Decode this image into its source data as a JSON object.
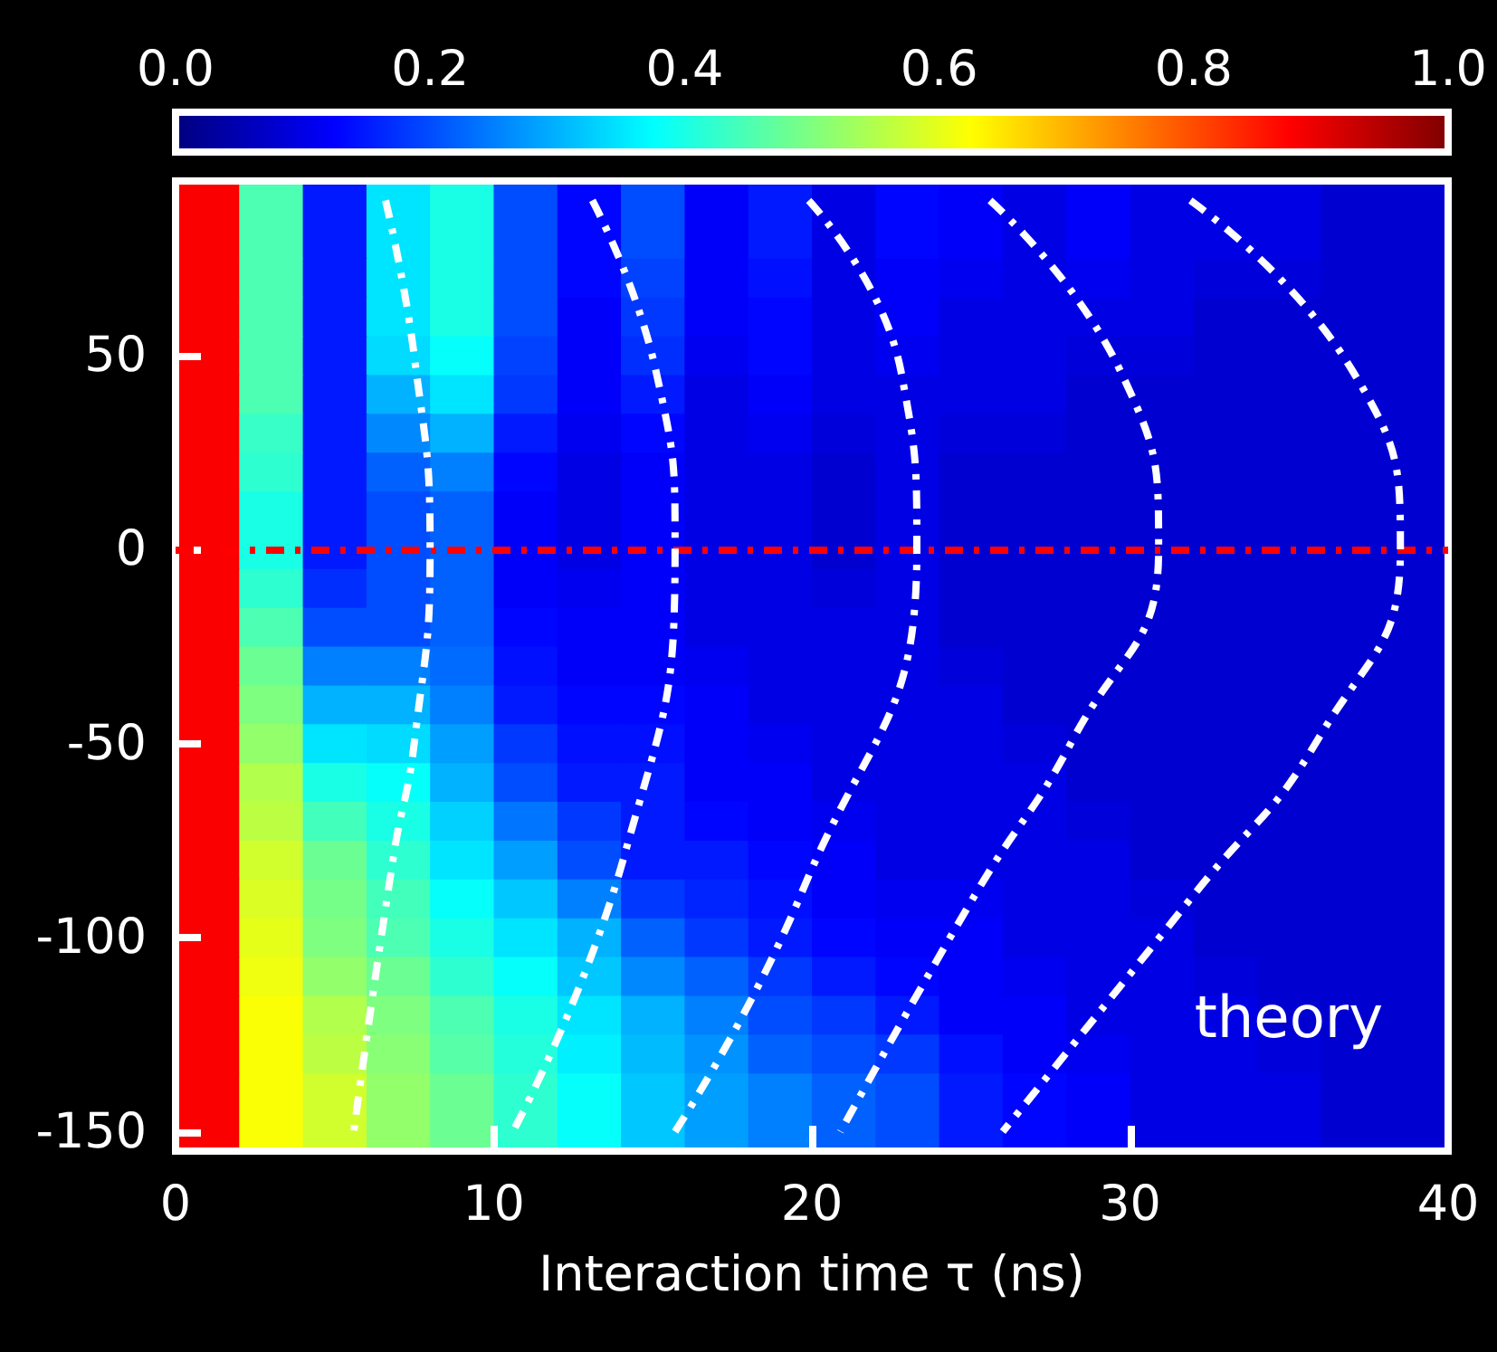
{
  "chart_data": [
    {
      "type": "heatmap",
      "x": [
        1,
        3,
        5,
        7,
        9,
        11,
        13,
        15,
        17,
        19,
        21,
        23,
        25,
        27,
        29,
        31,
        33,
        35,
        37,
        39
      ],
      "xlim": [
        0,
        40
      ],
      "xticks": [
        0,
        10,
        20,
        30,
        40
      ],
      "y_categories": [
        null,
        null,
        null,
        null,
        "50",
        null,
        null,
        null,
        null,
        "0",
        null,
        null,
        null,
        null,
        "-50",
        null,
        null,
        null,
        null,
        "-100",
        null,
        null,
        null,
        null,
        "-150"
      ],
      "cells": [
        [
          0.88,
          0.45,
          0.15,
          0.35,
          0.4,
          0.2,
          0.13,
          0.2,
          0.12,
          0.15,
          0.1,
          0.13,
          0.12,
          0.1,
          0.12,
          0.1,
          0.1,
          0.1,
          0.08,
          0.08
        ],
        [
          0.88,
          0.45,
          0.15,
          0.35,
          0.4,
          0.2,
          0.13,
          0.2,
          0.12,
          0.15,
          0.1,
          0.13,
          0.12,
          0.1,
          0.12,
          0.1,
          0.1,
          0.1,
          0.08,
          0.08
        ],
        [
          0.88,
          0.45,
          0.15,
          0.35,
          0.4,
          0.2,
          0.13,
          0.19,
          0.12,
          0.14,
          0.1,
          0.12,
          0.11,
          0.1,
          0.11,
          0.1,
          0.09,
          0.09,
          0.08,
          0.08
        ],
        [
          0.88,
          0.45,
          0.15,
          0.35,
          0.4,
          0.2,
          0.12,
          0.18,
          0.12,
          0.13,
          0.1,
          0.12,
          0.1,
          0.1,
          0.1,
          0.1,
          0.08,
          0.08,
          0.08,
          0.08
        ],
        [
          0.88,
          0.45,
          0.15,
          0.34,
          0.38,
          0.19,
          0.12,
          0.17,
          0.11,
          0.13,
          0.1,
          0.11,
          0.1,
          0.1,
          0.09,
          0.09,
          0.08,
          0.08,
          0.08,
          0.08
        ],
        [
          0.88,
          0.45,
          0.15,
          0.3,
          0.35,
          0.18,
          0.12,
          0.15,
          0.1,
          0.12,
          0.1,
          0.1,
          0.1,
          0.1,
          0.08,
          0.08,
          0.08,
          0.08,
          0.08,
          0.08
        ],
        [
          0.88,
          0.43,
          0.15,
          0.26,
          0.3,
          0.15,
          0.11,
          0.13,
          0.1,
          0.11,
          0.09,
          0.1,
          0.09,
          0.09,
          0.08,
          0.08,
          0.08,
          0.08,
          0.08,
          0.08
        ],
        [
          0.88,
          0.42,
          0.15,
          0.22,
          0.25,
          0.13,
          0.1,
          0.12,
          0.1,
          0.1,
          0.08,
          0.1,
          0.08,
          0.08,
          0.08,
          0.08,
          0.08,
          0.08,
          0.08,
          0.08
        ],
        [
          0.88,
          0.4,
          0.15,
          0.2,
          0.22,
          0.12,
          0.1,
          0.12,
          0.1,
          0.1,
          0.08,
          0.1,
          0.08,
          0.08,
          0.08,
          0.08,
          0.08,
          0.08,
          0.08,
          0.08
        ],
        [
          0.88,
          0.4,
          0.15,
          0.2,
          0.22,
          0.12,
          0.1,
          0.12,
          0.1,
          0.1,
          0.08,
          0.1,
          0.08,
          0.08,
          0.08,
          0.08,
          0.08,
          0.08,
          0.08,
          0.08
        ],
        [
          0.88,
          0.42,
          0.17,
          0.2,
          0.22,
          0.12,
          0.11,
          0.12,
          0.1,
          0.1,
          0.09,
          0.1,
          0.08,
          0.08,
          0.08,
          0.08,
          0.08,
          0.08,
          0.08,
          0.08
        ],
        [
          0.88,
          0.45,
          0.2,
          0.2,
          0.22,
          0.13,
          0.12,
          0.12,
          0.1,
          0.1,
          0.1,
          0.1,
          0.08,
          0.08,
          0.08,
          0.08,
          0.08,
          0.08,
          0.08,
          0.08
        ],
        [
          0.88,
          0.48,
          0.25,
          0.25,
          0.23,
          0.14,
          0.12,
          0.12,
          0.11,
          0.1,
          0.1,
          0.1,
          0.09,
          0.08,
          0.08,
          0.08,
          0.08,
          0.08,
          0.08,
          0.08
        ],
        [
          0.88,
          0.5,
          0.3,
          0.3,
          0.25,
          0.15,
          0.13,
          0.13,
          0.12,
          0.1,
          0.1,
          0.1,
          0.1,
          0.08,
          0.08,
          0.08,
          0.08,
          0.08,
          0.08,
          0.08
        ],
        [
          0.88,
          0.52,
          0.35,
          0.34,
          0.28,
          0.18,
          0.14,
          0.14,
          0.12,
          0.11,
          0.1,
          0.1,
          0.1,
          0.09,
          0.08,
          0.08,
          0.08,
          0.08,
          0.08,
          0.08
        ],
        [
          0.88,
          0.55,
          0.4,
          0.38,
          0.3,
          0.2,
          0.15,
          0.15,
          0.12,
          0.12,
          0.1,
          0.1,
          0.1,
          0.1,
          0.08,
          0.08,
          0.08,
          0.08,
          0.08,
          0.08
        ],
        [
          0.88,
          0.56,
          0.44,
          0.4,
          0.33,
          0.24,
          0.18,
          0.15,
          0.13,
          0.12,
          0.11,
          0.1,
          0.1,
          0.1,
          0.09,
          0.08,
          0.08,
          0.08,
          0.08,
          0.08
        ],
        [
          0.88,
          0.58,
          0.48,
          0.42,
          0.35,
          0.28,
          0.2,
          0.15,
          0.15,
          0.13,
          0.12,
          0.1,
          0.1,
          0.1,
          0.1,
          0.08,
          0.08,
          0.08,
          0.08,
          0.08
        ],
        [
          0.88,
          0.59,
          0.49,
          0.44,
          0.38,
          0.32,
          0.25,
          0.18,
          0.16,
          0.14,
          0.12,
          0.11,
          0.11,
          0.1,
          0.1,
          0.09,
          0.08,
          0.08,
          0.08,
          0.08
        ],
        [
          0.88,
          0.6,
          0.5,
          0.45,
          0.4,
          0.35,
          0.3,
          0.22,
          0.18,
          0.15,
          0.13,
          0.12,
          0.12,
          0.1,
          0.1,
          0.1,
          0.08,
          0.08,
          0.08,
          0.08
        ],
        [
          0.88,
          0.61,
          0.52,
          0.48,
          0.42,
          0.38,
          0.32,
          0.26,
          0.22,
          0.18,
          0.15,
          0.13,
          0.12,
          0.11,
          0.1,
          0.1,
          0.09,
          0.08,
          0.08,
          0.08
        ],
        [
          0.88,
          0.62,
          0.55,
          0.5,
          0.45,
          0.4,
          0.35,
          0.3,
          0.25,
          0.2,
          0.18,
          0.15,
          0.12,
          0.12,
          0.1,
          0.1,
          0.1,
          0.08,
          0.08,
          0.08
        ],
        [
          0.88,
          0.62,
          0.56,
          0.51,
          0.46,
          0.41,
          0.36,
          0.31,
          0.27,
          0.22,
          0.2,
          0.18,
          0.14,
          0.12,
          0.11,
          0.1,
          0.1,
          0.09,
          0.08,
          0.08
        ],
        [
          0.88,
          0.62,
          0.58,
          0.52,
          0.48,
          0.42,
          0.38,
          0.32,
          0.28,
          0.25,
          0.22,
          0.2,
          0.15,
          0.13,
          0.12,
          0.1,
          0.1,
          0.1,
          0.08,
          0.08
        ],
        [
          0.88,
          0.62,
          0.58,
          0.52,
          0.48,
          0.42,
          0.38,
          0.32,
          0.28,
          0.25,
          0.22,
          0.2,
          0.15,
          0.13,
          0.12,
          0.1,
          0.1,
          0.1,
          0.08,
          0.08
        ]
      ],
      "clim": [
        0,
        1
      ],
      "cticks": [
        {
          "value": 0,
          "label": "0.0"
        },
        {
          "value": 0.2,
          "label": "0.2"
        },
        {
          "value": 0.4,
          "label": "0.4"
        },
        {
          "value": 0.6,
          "label": "0.6"
        },
        {
          "value": 0.8,
          "label": "0.8"
        },
        {
          "value": 1,
          "label": "1.0"
        }
      ]
    },
    {
      "type": "line",
      "xlabel": "Interaction time τ (ns)",
      "xlim": [
        0,
        40
      ],
      "xticks": [
        0,
        10,
        20,
        30,
        40
      ],
      "tick_labels": false,
      "ylim": [
        -155,
        95
      ],
      "yticks": [
        -150,
        -100,
        -50,
        0,
        50
      ],
      "series": [
        {
          "color": "#ffffff",
          "x": [
            6.6,
            7.5,
            8.0,
            7.5,
            6.85,
            5.6
          ],
          "values": [
            90,
            50,
            0,
            -50,
            -79,
            -150
          ]
        },
        {
          "color": "#ffffff",
          "x": [
            13.1,
            15.1,
            15.7,
            14.1,
            10.6
          ],
          "values": [
            90,
            46,
            0,
            -79,
            -150
          ]
        },
        {
          "color": "#ffffff",
          "x": [
            19.9,
            22.8,
            23.3,
            19.7,
            15.7
          ],
          "values": [
            90,
            46,
            0,
            -88,
            -150
          ]
        },
        {
          "color": "#ffffff",
          "x": [
            25.6,
            29.7,
            30.9,
            28.2,
            25.2,
            20.9
          ],
          "values": [
            90,
            46,
            0,
            -49,
            -88,
            -150
          ]
        },
        {
          "color": "#ffffff",
          "x": [
            31.9,
            37.0,
            38.5,
            35.9,
            32.1,
            26.0
          ],
          "values": [
            90,
            46,
            0,
            -49,
            -88,
            -150
          ]
        }
      ],
      "line_style": "dashed",
      "marker": "none",
      "ref_lines": [
        {
          "axis": "y",
          "value": 0,
          "color": "#ff0000",
          "line_style": "dashed"
        }
      ],
      "annotations": [
        "theory"
      ]
    }
  ]
}
